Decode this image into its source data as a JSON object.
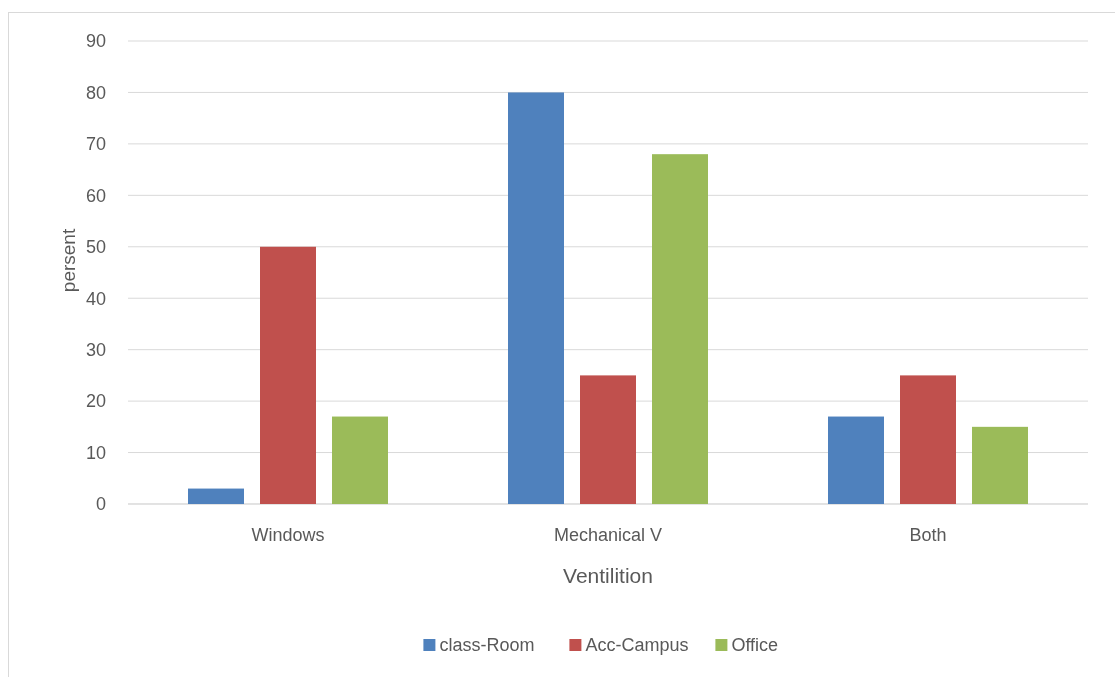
{
  "chart_data": {
    "type": "bar",
    "xlabel": "Ventilition",
    "ylabel": "persent",
    "categories": [
      "Windows",
      "Mechanical V",
      "Both"
    ],
    "series": [
      {
        "name": "class-Room",
        "color": "#4f81bd",
        "values": [
          3,
          80,
          17
        ]
      },
      {
        "name": "Acc-Campus",
        "color": "#c0504d",
        "values": [
          50,
          25,
          25
        ]
      },
      {
        "name": "Office",
        "color": "#9bbb59",
        "values": [
          17,
          68,
          15
        ]
      }
    ],
    "ylim": [
      0,
      90
    ],
    "yticks": [
      0,
      10,
      20,
      30,
      40,
      50,
      60,
      70,
      80,
      90
    ],
    "grid": "y",
    "legend": "bottom"
  }
}
